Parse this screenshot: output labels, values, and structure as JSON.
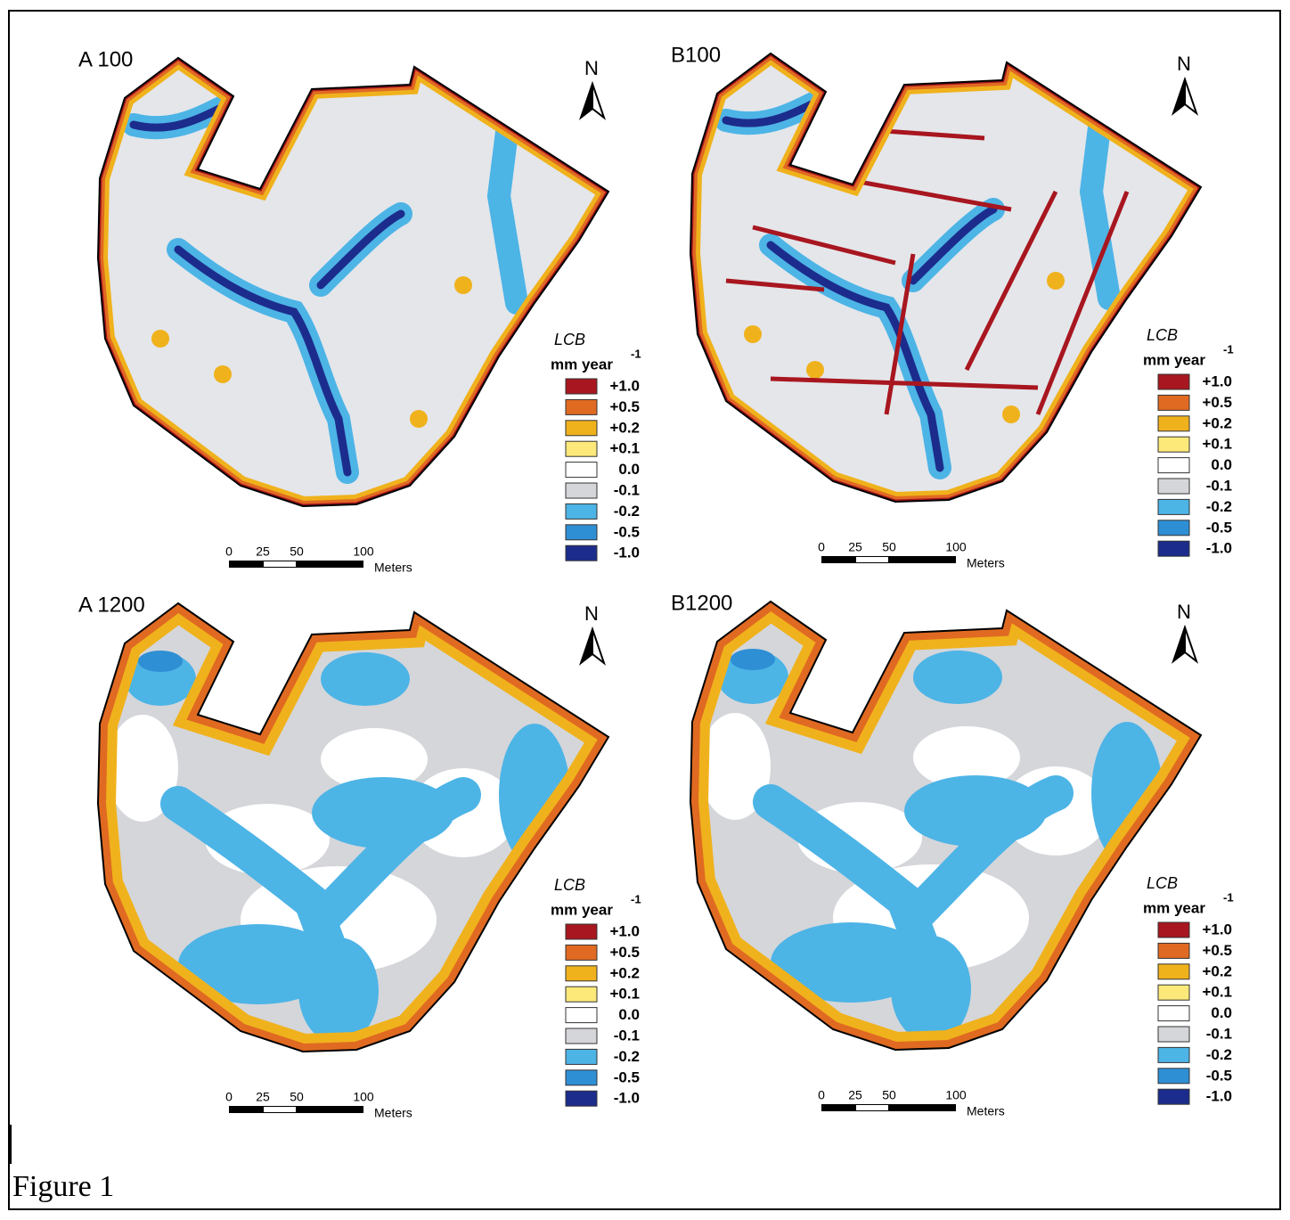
{
  "figure": {
    "caption": "Figure 1",
    "north": "N",
    "panels": [
      {
        "label": "A 100"
      },
      {
        "label": "B100"
      },
      {
        "label": "A 1200"
      },
      {
        "label": "B1200"
      }
    ],
    "legend": {
      "title": "LCB",
      "unit": "mm year",
      "exponent": "-1",
      "items": [
        {
          "label": "+1.0",
          "color": "#a8161f"
        },
        {
          "label": "+0.5",
          "color": "#e06a22"
        },
        {
          "label": "+0.2",
          "color": "#f0b21c"
        },
        {
          "label": "+0.1",
          "color": "#fde97a"
        },
        {
          "label": "0.0",
          "color": "#ffffff"
        },
        {
          "label": "-0.1",
          "color": "#d4d6da"
        },
        {
          "label": "-0.2",
          "color": "#4db4e6"
        },
        {
          "label": "-0.5",
          "color": "#2f8fd4"
        },
        {
          "label": "-1.0",
          "color": "#1c2c8c"
        }
      ]
    },
    "scale_bar": {
      "ticks": [
        "0",
        "25",
        "50",
        "100"
      ],
      "unit": "Meters"
    }
  }
}
